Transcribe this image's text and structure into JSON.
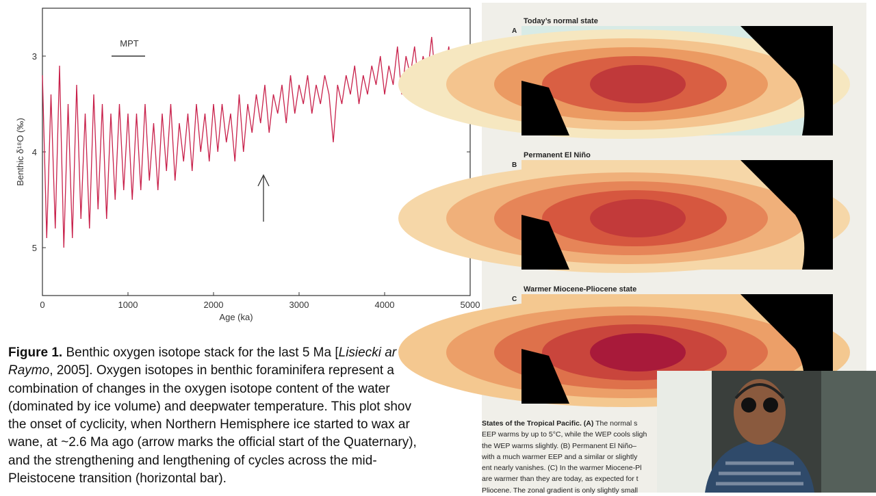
{
  "chart_data": {
    "type": "line",
    "xlabel": "Age (ka)",
    "ylabel": "Benthic δ¹⁸O (‰)",
    "annotation": "MPT",
    "x": [
      0,
      50,
      100,
      150,
      200,
      250,
      300,
      350,
      400,
      450,
      500,
      550,
      600,
      650,
      700,
      750,
      800,
      850,
      900,
      950,
      1000,
      1050,
      1100,
      1150,
      1200,
      1250,
      1300,
      1350,
      1400,
      1450,
      1500,
      1550,
      1600,
      1650,
      1700,
      1750,
      1800,
      1850,
      1900,
      1950,
      2000,
      2050,
      2100,
      2150,
      2200,
      2250,
      2300,
      2350,
      2400,
      2450,
      2500,
      2550,
      2600,
      2650,
      2700,
      2750,
      2800,
      2850,
      2900,
      2950,
      3000,
      3050,
      3100,
      3150,
      3200,
      3250,
      3300,
      3350,
      3400,
      3450,
      3500,
      3550,
      3600,
      3650,
      3700,
      3750,
      3800,
      3850,
      3900,
      3950,
      4000,
      4050,
      4100,
      4150,
      4200,
      4250,
      4300,
      4350,
      4400,
      4450,
      4500,
      4550,
      4600,
      4650,
      4700,
      4750,
      4800,
      4850,
      4900,
      4950,
      5000
    ],
    "series": [
      {
        "color": "#c8204a",
        "values": [
          3.2,
          4.9,
          3.4,
          4.8,
          3.1,
          5.0,
          3.5,
          4.9,
          3.3,
          4.7,
          3.6,
          4.8,
          3.4,
          4.6,
          3.5,
          4.7,
          3.6,
          4.5,
          3.5,
          4.4,
          3.6,
          4.5,
          3.6,
          4.4,
          3.5,
          4.3,
          3.7,
          4.4,
          3.6,
          4.2,
          3.5,
          4.3,
          3.7,
          4.1,
          3.6,
          4.2,
          3.5,
          4.0,
          3.6,
          4.1,
          3.5,
          4.0,
          3.5,
          3.9,
          3.6,
          4.1,
          3.4,
          4.0,
          3.5,
          3.8,
          3.4,
          3.7,
          3.3,
          3.8,
          3.4,
          3.6,
          3.3,
          3.7,
          3.2,
          3.6,
          3.3,
          3.5,
          3.2,
          3.6,
          3.3,
          3.5,
          3.2,
          3.4,
          3.9,
          3.3,
          3.5,
          3.2,
          3.4,
          3.1,
          3.5,
          3.2,
          3.4,
          3.1,
          3.3,
          3.0,
          3.4,
          3.1,
          3.3,
          2.9,
          3.4,
          3.0,
          3.2,
          2.9,
          3.3,
          3.0,
          3.2,
          2.8,
          3.3,
          3.0,
          3.2,
          2.9,
          3.3,
          3.0,
          3.2,
          2.9,
          3.1
        ]
      }
    ],
    "xlim": [
      0,
      5000
    ],
    "xticks": [
      0,
      1000,
      2000,
      3000,
      4000,
      5000
    ],
    "ylim": [
      2.5,
      5.5
    ],
    "yticks": [
      3,
      4,
      5
    ],
    "y_inverted": true
  },
  "caption": {
    "label": "Figure 1.",
    "line1": " Benthic oxygen isotope stack for the last 5 Ma [",
    "line1_italic": "Lisiecki ar",
    "line2_italic": "Raymo",
    "line2": ", 2005]. Oxygen isotopes in benthic foraminifera represent a",
    "lines": [
      "combination of changes in the oxygen isotope content of the water",
      "(dominated by ice volume) and deepwater temperature. This plot shov",
      "the onset of cyclicity, when Northern Hemisphere ice started to wax ar",
      "wane, at ~2.6 Ma ago (arrow marks the official start of the Quaternary),",
      "and the strengthening and lengthening of cycles across the mid-",
      "Pleistocene transition (horizontal bar)."
    ]
  },
  "maps": [
    {
      "letter": "A",
      "title": "Today’s normal state"
    },
    {
      "letter": "B",
      "title": "Permanent El Niño"
    },
    {
      "letter": "C",
      "title": "Warmer Miocene-Pliocene state"
    }
  ],
  "map_caption": {
    "lead": "States of the Tropical Pacific. (A)",
    "first": " The normal s",
    "lines": [
      "EEP warms by up to 5°C, while the WEP cools sligh",
      "the WEP warms slightly. (B) Permanent El Niño–",
      "with a much warmer EEP and a similar or slightly",
      "ent nearly vanishes. (C) In the warmer Miocene-Pl",
      "are warmer than they are today, as expected for t",
      "Pliocene. The zonal gradient is only slightly small"
    ]
  }
}
